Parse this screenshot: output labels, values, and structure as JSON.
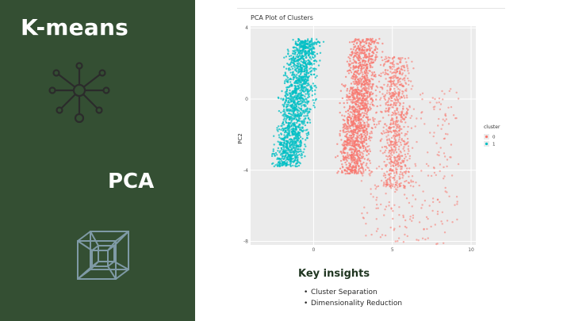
{
  "sidebar": {
    "title": "K-means",
    "pca_label": "PCA",
    "icons": [
      "network-graph-icon",
      "hypercube-icon"
    ]
  },
  "colors": {
    "sidebar_bg": "#344f33",
    "cluster_0": "#f8766d",
    "cluster_1": "#00bfc4",
    "panel_bg": "#ebebeb"
  },
  "insights": {
    "title": "Key insights",
    "items": [
      "Cluster Separation",
      "Dimensionality Reduction"
    ]
  },
  "chart_data": {
    "type": "scatter",
    "title": "PCA Plot of Clusters",
    "xlabel": "",
    "ylabel": "PC2",
    "xlim": [
      -4,
      10.3
    ],
    "ylim": [
      -8.2,
      4.1
    ],
    "x_ticks": [
      "0",
      "5",
      "10"
    ],
    "y_ticks": [
      "4",
      "0",
      "-4",
      "-8"
    ],
    "grid": true,
    "legend": {
      "title": "cluster",
      "position": "right",
      "entries": [
        "0",
        "1"
      ]
    },
    "series": [
      {
        "name": "0",
        "x_range": [
          0,
          9.3
        ],
        "y_range": [
          -8,
          3.5
        ],
        "density": "dense bands near x 1.5–5, sparse tail to x 9"
      },
      {
        "name": "1",
        "x_range": [
          -3.5,
          1
        ],
        "y_range": [
          -4,
          3.5
        ],
        "density": "dense band sloping from lower-left to upper-right"
      }
    ]
  }
}
